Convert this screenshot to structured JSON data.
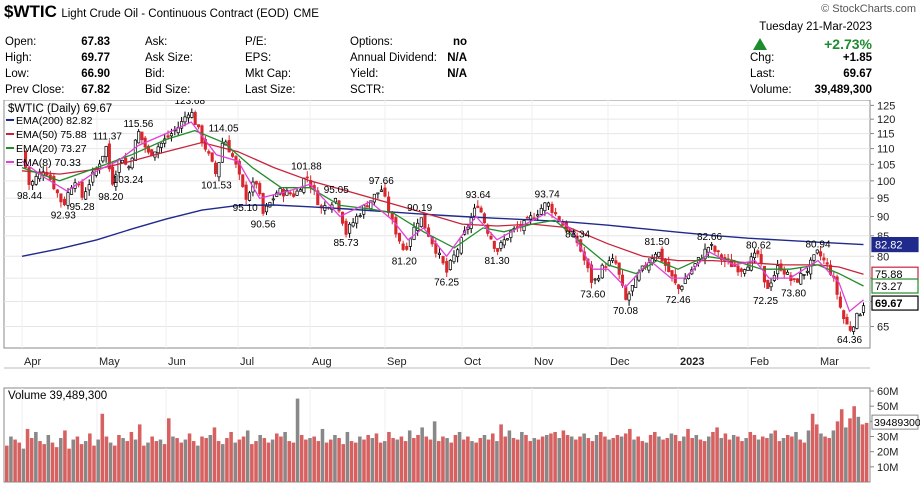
{
  "header": {
    "symbol": "$WTIC",
    "name": "Light Crude Oil - Continuous Contract (EOD)",
    "exchange": "CME",
    "watermark": "© StockCharts.com",
    "date": "Tuesday  21-Mar-2023",
    "pct_change": "+2.73%",
    "chg_label": "Chg:",
    "chg": "+1.85",
    "last_label": "Last:",
    "last": "69.67",
    "volume_label": "Volume:",
    "volume": "39,489,300",
    "col1": [
      [
        "Open:",
        "67.83"
      ],
      [
        "High:",
        "69.77"
      ],
      [
        "Low:",
        "66.90"
      ],
      [
        "Prev Close:",
        "67.82"
      ]
    ],
    "col2": [
      [
        "Ask:",
        ""
      ],
      [
        "Ask Size:",
        ""
      ],
      [
        "Bid:",
        ""
      ],
      [
        "Bid Size:",
        ""
      ]
    ],
    "col3": [
      [
        "P/E:",
        ""
      ],
      [
        "EPS:",
        ""
      ],
      [
        "Mkt Cap:",
        ""
      ],
      [
        "Last Size:",
        ""
      ]
    ],
    "col4": [
      [
        "Options:",
        "no"
      ],
      [
        "Annual Dividend:",
        "N/A"
      ],
      [
        "Yield:",
        "N/A"
      ],
      [
        "SCTR:",
        ""
      ]
    ]
  },
  "colors": {
    "up": "#000000",
    "down": "#d8272d",
    "ema200": "#1f2a8c",
    "ema50": "#c8233c",
    "ema20": "#238d2a",
    "ema8": "#e040d8",
    "up_arrow": "#1d8c2d",
    "vol_down": "#d76060",
    "vol_up": "#888888"
  },
  "chart_data": {
    "type": "line",
    "title": "$WTIC (Daily) 69.67",
    "price_axis": {
      "ticks": [
        65,
        70,
        75,
        80,
        85,
        90,
        95,
        100,
        105,
        110,
        115,
        120,
        125
      ],
      "range": [
        61,
        127
      ],
      "scale": "log"
    },
    "month_labels": [
      "Apr",
      "May",
      "Jun",
      "Jul",
      "Aug",
      "Sep",
      "Oct",
      "Nov",
      "Dec",
      "2023",
      "Feb",
      "Mar"
    ],
    "legend": [
      {
        "name": "EMA(200) 82.82",
        "color": "#1f2a8c"
      },
      {
        "name": "EMA(50) 75.88",
        "color": "#c8233c"
      },
      {
        "name": "EMA(20) 73.27",
        "color": "#238d2a"
      },
      {
        "name": "EMA(8) 70.33",
        "color": "#e040d8"
      }
    ],
    "last_markers": [
      {
        "label": "82.82",
        "value": 82.82,
        "color": "#1f2a8c",
        "border": "#1f2a8c"
      },
      {
        "label": "75.88",
        "value": 75.88,
        "color": "#ffffff",
        "border": "#c8233c"
      },
      {
        "label": "73.27",
        "value": 73.27,
        "color": "#ffffff",
        "border": "#238d2a"
      },
      {
        "label": "69.67",
        "value": 69.67,
        "color": "#ffffff",
        "border": "#000000"
      }
    ],
    "annotations": [
      {
        "text": "98.44",
        "month": 0.1,
        "value": 98.44,
        "pos": "below"
      },
      {
        "text": "92.93",
        "month": 0.55,
        "value": 92.93,
        "pos": "below"
      },
      {
        "text": "95.28",
        "month": 0.8,
        "value": 95.28,
        "pos": "below"
      },
      {
        "text": "98.20",
        "month": 1.2,
        "value": 98.2,
        "pos": "below"
      },
      {
        "text": "111.37",
        "month": 1.15,
        "value": 111.37,
        "pos": "above"
      },
      {
        "text": "103.24",
        "month": 1.45,
        "value": 103.24,
        "pos": "below"
      },
      {
        "text": "115.56",
        "month": 1.6,
        "value": 115.56,
        "pos": "above"
      },
      {
        "text": "123.68",
        "month": 2.33,
        "value": 123.68,
        "pos": "above"
      },
      {
        "text": "114.05",
        "month": 2.8,
        "value": 114.05,
        "pos": "above"
      },
      {
        "text": "101.53",
        "month": 2.7,
        "value": 101.53,
        "pos": "below"
      },
      {
        "text": "95.10",
        "month": 3.1,
        "value": 95.1,
        "pos": "below"
      },
      {
        "text": "90.56",
        "month": 3.35,
        "value": 90.56,
        "pos": "below"
      },
      {
        "text": "101.88",
        "month": 3.95,
        "value": 101.88,
        "pos": "above"
      },
      {
        "text": "95.05",
        "month": 4.35,
        "value": 95.05,
        "pos": "above"
      },
      {
        "text": "85.73",
        "month": 4.48,
        "value": 85.73,
        "pos": "below"
      },
      {
        "text": "97.66",
        "month": 4.95,
        "value": 97.66,
        "pos": "above"
      },
      {
        "text": "81.20",
        "month": 5.25,
        "value": 81.2,
        "pos": "below"
      },
      {
        "text": "90.19",
        "month": 5.45,
        "value": 90.19,
        "pos": "above"
      },
      {
        "text": "76.25",
        "month": 5.8,
        "value": 76.25,
        "pos": "below"
      },
      {
        "text": "93.64",
        "month": 6.23,
        "value": 93.64,
        "pos": "above"
      },
      {
        "text": "81.30",
        "month": 6.5,
        "value": 81.3,
        "pos": "below"
      },
      {
        "text": "93.74",
        "month": 7.2,
        "value": 93.74,
        "pos": "above"
      },
      {
        "text": "83.34",
        "month": 7.6,
        "value": 83.34,
        "pos": "above"
      },
      {
        "text": "73.60",
        "month": 7.8,
        "value": 73.6,
        "pos": "below"
      },
      {
        "text": "70.08",
        "month": 8.25,
        "value": 70.08,
        "pos": "below"
      },
      {
        "text": "81.50",
        "month": 8.7,
        "value": 81.5,
        "pos": "above"
      },
      {
        "text": "72.46",
        "month": 9.0,
        "value": 72.46,
        "pos": "below"
      },
      {
        "text": "82.66",
        "month": 9.45,
        "value": 82.66,
        "pos": "above"
      },
      {
        "text": "80.62",
        "month": 10.15,
        "value": 80.62,
        "pos": "above"
      },
      {
        "text": "72.25",
        "month": 10.25,
        "value": 72.25,
        "pos": "below"
      },
      {
        "text": "73.80",
        "month": 10.65,
        "value": 73.8,
        "pos": "below"
      },
      {
        "text": "80.94",
        "month": 11.0,
        "value": 80.94,
        "pos": "above"
      },
      {
        "text": "64.36",
        "month": 11.45,
        "value": 64.36,
        "pos": "below"
      }
    ],
    "close_path": [
      [
        0,
        109
      ],
      [
        0.1,
        98.44
      ],
      [
        0.3,
        104
      ],
      [
        0.55,
        92.93
      ],
      [
        0.7,
        101
      ],
      [
        0.8,
        95.28
      ],
      [
        1.0,
        104
      ],
      [
        1.15,
        111.37
      ],
      [
        1.2,
        98.2
      ],
      [
        1.35,
        108
      ],
      [
        1.45,
        103.24
      ],
      [
        1.6,
        115.56
      ],
      [
        1.75,
        108
      ],
      [
        1.95,
        112
      ],
      [
        2.2,
        118
      ],
      [
        2.33,
        123.68
      ],
      [
        2.5,
        113
      ],
      [
        2.7,
        101.53
      ],
      [
        2.8,
        114.05
      ],
      [
        2.95,
        106
      ],
      [
        3.1,
        95.1
      ],
      [
        3.25,
        100
      ],
      [
        3.35,
        90.56
      ],
      [
        3.55,
        97
      ],
      [
        3.8,
        96
      ],
      [
        3.95,
        101.88
      ],
      [
        4.15,
        92
      ],
      [
        4.35,
        95.05
      ],
      [
        4.48,
        85.73
      ],
      [
        4.7,
        92
      ],
      [
        4.95,
        97.66
      ],
      [
        5.1,
        88
      ],
      [
        5.25,
        81.2
      ],
      [
        5.45,
        90.19
      ],
      [
        5.6,
        84
      ],
      [
        5.8,
        76.25
      ],
      [
        6.0,
        84
      ],
      [
        6.23,
        93.64
      ],
      [
        6.35,
        87
      ],
      [
        6.5,
        81.3
      ],
      [
        6.7,
        86
      ],
      [
        6.9,
        88
      ],
      [
        7.2,
        93.74
      ],
      [
        7.4,
        88
      ],
      [
        7.6,
        83.34
      ],
      [
        7.8,
        73.6
      ],
      [
        7.95,
        78
      ],
      [
        8.1,
        79
      ],
      [
        8.25,
        70.08
      ],
      [
        8.45,
        76
      ],
      [
        8.7,
        81.5
      ],
      [
        8.85,
        77
      ],
      [
        9.0,
        72.46
      ],
      [
        9.2,
        77
      ],
      [
        9.45,
        82.66
      ],
      [
        9.65,
        79
      ],
      [
        9.9,
        77
      ],
      [
        10.15,
        80.62
      ],
      [
        10.25,
        72.25
      ],
      [
        10.45,
        78
      ],
      [
        10.65,
        73.8
      ],
      [
        10.85,
        77
      ],
      [
        11.0,
        80.94
      ],
      [
        11.2,
        76
      ],
      [
        11.35,
        67
      ],
      [
        11.45,
        64.36
      ],
      [
        11.6,
        67.82
      ],
      [
        11.65,
        69.67
      ]
    ],
    "ema200": [
      [
        0,
        80
      ],
      [
        0.5,
        81.8
      ],
      [
        1,
        84
      ],
      [
        1.5,
        86.7
      ],
      [
        2,
        89.3
      ],
      [
        2.5,
        91.7
      ],
      [
        3,
        93.0
      ],
      [
        3.5,
        93.1
      ],
      [
        4,
        92.6
      ],
      [
        4.5,
        92.0
      ],
      [
        5,
        91.3
      ],
      [
        5.5,
        90.6
      ],
      [
        6,
        90.0
      ],
      [
        6.5,
        89.5
      ],
      [
        7,
        89.1
      ],
      [
        7.5,
        88.5
      ],
      [
        8,
        87.7
      ],
      [
        8.5,
        86.8
      ],
      [
        9,
        85.9
      ],
      [
        9.5,
        85.1
      ],
      [
        10,
        84.4
      ],
      [
        10.5,
        83.9
      ],
      [
        11,
        83.4
      ],
      [
        11.65,
        82.82
      ]
    ],
    "ema50": [
      [
        0,
        103
      ],
      [
        0.5,
        102
      ],
      [
        1,
        103.5
      ],
      [
        1.5,
        106
      ],
      [
        2,
        109
      ],
      [
        2.5,
        112
      ],
      [
        3,
        109
      ],
      [
        3.5,
        104
      ],
      [
        4,
        100
      ],
      [
        4.5,
        97
      ],
      [
        5,
        94
      ],
      [
        5.5,
        91
      ],
      [
        6,
        88
      ],
      [
        6.5,
        87.5
      ],
      [
        7,
        88
      ],
      [
        7.5,
        87
      ],
      [
        8,
        83
      ],
      [
        8.5,
        80
      ],
      [
        9,
        79
      ],
      [
        9.5,
        79
      ],
      [
        10,
        78.5
      ],
      [
        10.5,
        78
      ],
      [
        11,
        78
      ],
      [
        11.3,
        77.5
      ],
      [
        11.65,
        75.88
      ]
    ],
    "ema20": [
      [
        0,
        104
      ],
      [
        0.5,
        100
      ],
      [
        1,
        104
      ],
      [
        1.5,
        108
      ],
      [
        2,
        113
      ],
      [
        2.4,
        116
      ],
      [
        2.8,
        112
      ],
      [
        3.2,
        104
      ],
      [
        3.6,
        98
      ],
      [
        4,
        98
      ],
      [
        4.4,
        93
      ],
      [
        4.8,
        92
      ],
      [
        5.1,
        91
      ],
      [
        5.5,
        86
      ],
      [
        5.9,
        82
      ],
      [
        6.3,
        87
      ],
      [
        6.6,
        86
      ],
      [
        7,
        88
      ],
      [
        7.3,
        89
      ],
      [
        7.6,
        84
      ],
      [
        8,
        78
      ],
      [
        8.4,
        76
      ],
      [
        8.7,
        79
      ],
      [
        9,
        77
      ],
      [
        9.4,
        80
      ],
      [
        9.8,
        79
      ],
      [
        10.2,
        77
      ],
      [
        10.6,
        77
      ],
      [
        11,
        78
      ],
      [
        11.3,
        76
      ],
      [
        11.65,
        73.27
      ]
    ],
    "ema8": [
      [
        0,
        106
      ],
      [
        0.3,
        101
      ],
      [
        0.6,
        97
      ],
      [
        1,
        103
      ],
      [
        1.3,
        106
      ],
      [
        1.6,
        111
      ],
      [
        2,
        115
      ],
      [
        2.35,
        119
      ],
      [
        2.7,
        108
      ],
      [
        3.0,
        106
      ],
      [
        3.3,
        95
      ],
      [
        3.7,
        97
      ],
      [
        4,
        99
      ],
      [
        4.4,
        90
      ],
      [
        4.8,
        94
      ],
      [
        5.1,
        89
      ],
      [
        5.3,
        84
      ],
      [
        5.5,
        87
      ],
      [
        5.8,
        80
      ],
      [
        6.2,
        90
      ],
      [
        6.5,
        84
      ],
      [
        6.8,
        87
      ],
      [
        7.2,
        91
      ],
      [
        7.5,
        87
      ],
      [
        7.8,
        77
      ],
      [
        8.0,
        77
      ],
      [
        8.25,
        73
      ],
      [
        8.6,
        79
      ],
      [
        8.9,
        75
      ],
      [
        9.1,
        75
      ],
      [
        9.45,
        81
      ],
      [
        9.8,
        78
      ],
      [
        10.1,
        79
      ],
      [
        10.3,
        75
      ],
      [
        10.6,
        75
      ],
      [
        11.0,
        79
      ],
      [
        11.3,
        74
      ],
      [
        11.45,
        68
      ],
      [
        11.65,
        70.33
      ]
    ],
    "volume": {
      "label": "Volume 39,489,300",
      "ticks": [
        "10M",
        "20M",
        "30M",
        "40M",
        "50M",
        "60M"
      ],
      "ticks_values": [
        10,
        20,
        30,
        40,
        50,
        60
      ],
      "last_label": "39489300",
      "last_value": 39.49,
      "range": [
        0,
        62
      ],
      "seed_bars": [
        24,
        30,
        28,
        26,
        22,
        35,
        29,
        33,
        27,
        25,
        31,
        26,
        23,
        29,
        34,
        22,
        28,
        30,
        25,
        27,
        32,
        24,
        28,
        45,
        30,
        26,
        24,
        31,
        29,
        27,
        33,
        28,
        38,
        24,
        26,
        30,
        27,
        28,
        25,
        42,
        30,
        29,
        26,
        28,
        32,
        27,
        24,
        30,
        29,
        31,
        36,
        27,
        25,
        29,
        33,
        26,
        28,
        30,
        34,
        25,
        27,
        31,
        29,
        26,
        28,
        32,
        30,
        33,
        27,
        26,
        55,
        31,
        28,
        29,
        30,
        27,
        35,
        26,
        28,
        31,
        29,
        25,
        33,
        27,
        26,
        30,
        28,
        31,
        29,
        32,
        26,
        27,
        33,
        29,
        28,
        30,
        27,
        34,
        29,
        31,
        36,
        30,
        28,
        40,
        27,
        30,
        29,
        26,
        31,
        33,
        28,
        30,
        27,
        26,
        29,
        31,
        28,
        32,
        27,
        38,
        30,
        34,
        29,
        28,
        33,
        31,
        27,
        29,
        28,
        30,
        31,
        32,
        33,
        29,
        34,
        31,
        30,
        28,
        30,
        32,
        29,
        27,
        31,
        33,
        30,
        28,
        29,
        31,
        30,
        32,
        35,
        28,
        30,
        27,
        26,
        31,
        33,
        30,
        28,
        29,
        32,
        31,
        27,
        30,
        35,
        29,
        31,
        28,
        27,
        30,
        33,
        36,
        29,
        32,
        28,
        31,
        30,
        27,
        29,
        33,
        31,
        28,
        30,
        29,
        32,
        34,
        27,
        29,
        31,
        30,
        33,
        28,
        26,
        34,
        45,
        38,
        32,
        30,
        29,
        34,
        40,
        48,
        36,
        42,
        50,
        43,
        38,
        39
      ]
    }
  }
}
